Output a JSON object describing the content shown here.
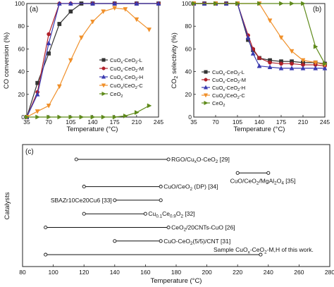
{
  "chart_data": [
    {
      "type": "line",
      "panel_label": "(a)",
      "xlabel": "Temperature (°C)",
      "ylabel": "CO conversion (%)",
      "xlim": [
        35,
        245
      ],
      "ylim": [
        0,
        100
      ],
      "xticks": [
        35,
        70,
        105,
        140,
        175,
        210,
        245
      ],
      "xtick_labels": [
        "35",
        "70",
        "105",
        "140",
        "175",
        "210",
        "245"
      ],
      "yticks": [
        0,
        20,
        40,
        60,
        80,
        100
      ],
      "ytick_labels": [
        "0",
        "20",
        "40",
        "60",
        "80",
        "100"
      ],
      "legend_position": "right",
      "series": [
        {
          "name": "CuO$_x$-CeO$_2$-L",
          "legend_parts": [
            [
              "CuO",
              ""
            ],
            [
              "x",
              "sub"
            ],
            [
              "-CeO",
              ""
            ],
            [
              "2",
              "sub"
            ],
            [
              "-L",
              ""
            ]
          ],
          "color": "#333333",
          "marker": "square",
          "x": [
            35,
            52,
            70,
            87,
            105,
            122,
            140,
            175,
            210,
            245
          ],
          "y": [
            0,
            30,
            56,
            82,
            93,
            100,
            100,
            100,
            100,
            100
          ]
        },
        {
          "name": "CuO$_x$-CeO$_2$-M",
          "legend_parts": [
            [
              "CuO",
              ""
            ],
            [
              "x",
              "sub"
            ],
            [
              "-CeO",
              ""
            ],
            [
              "2",
              "sub"
            ],
            [
              "-M",
              ""
            ]
          ],
          "color": "#b0202a",
          "marker": "circle",
          "x": [
            35,
            52,
            70,
            87,
            105,
            140,
            175,
            210,
            245
          ],
          "y": [
            0,
            22,
            73,
            100,
            100,
            100,
            100,
            100,
            100
          ]
        },
        {
          "name": "CuO$_x$-CeO$_2$-H",
          "legend_parts": [
            [
              "CuO",
              ""
            ],
            [
              "x",
              "sub"
            ],
            [
              "-CeO",
              ""
            ],
            [
              "2",
              "sub"
            ],
            [
              "-H",
              ""
            ]
          ],
          "color": "#3a3ab0",
          "marker": "triangle",
          "x": [
            35,
            52,
            70,
            87,
            105,
            140,
            175,
            210,
            245
          ],
          "y": [
            0,
            20,
            65,
            100,
            100,
            100,
            100,
            100,
            100
          ]
        },
        {
          "name": "CuO$_x$/CeO$_2$-C",
          "legend_parts": [
            [
              "CuO",
              ""
            ],
            [
              "x",
              "sub"
            ],
            [
              "/CeO",
              ""
            ],
            [
              "2",
              "sub"
            ],
            [
              "-C",
              ""
            ]
          ],
          "color": "#f0902a",
          "marker": "triangle-down",
          "x": [
            35,
            52,
            70,
            87,
            105,
            122,
            140,
            157,
            175,
            192,
            210,
            230
          ],
          "y": [
            0,
            5,
            10,
            27,
            50,
            70,
            84,
            93,
            96,
            95,
            86,
            77
          ]
        },
        {
          "name": "CeO$_2$",
          "legend_parts": [
            [
              "CeO",
              ""
            ],
            [
              "2",
              "sub"
            ]
          ],
          "color": "#5e8a1a",
          "marker": "triangle-right",
          "x": [
            35,
            52,
            70,
            87,
            105,
            122,
            140,
            157,
            175,
            192,
            210,
            230
          ],
          "y": [
            0,
            0,
            0,
            0,
            0,
            0,
            0,
            0,
            0,
            1,
            4,
            10
          ]
        }
      ]
    },
    {
      "type": "line",
      "panel_label": "(b)",
      "xlabel": "Temperature (°C)",
      "ylabel": "CO$_2$ selectivity (%)",
      "ylabel_parts": [
        [
          "CO",
          ""
        ],
        [
          "2",
          "sub"
        ],
        [
          " selectivity (%)",
          ""
        ]
      ],
      "xlim": [
        35,
        245
      ],
      "ylim": [
        0,
        100
      ],
      "xticks": [
        35,
        70,
        105,
        140,
        175,
        210,
        245
      ],
      "xtick_labels": [
        "35",
        "70",
        "105",
        "140",
        "175",
        "210",
        "245"
      ],
      "yticks": [
        0,
        20,
        40,
        60,
        80,
        100
      ],
      "ytick_labels": [
        "0",
        "20",
        "40",
        "60",
        "80",
        "100"
      ],
      "legend_position": "left",
      "series": [
        {
          "name": "CuO$_x$-CeO$_2$-L",
          "legend_parts": [
            [
              "CuO",
              ""
            ],
            [
              "x",
              "sub"
            ],
            [
              "-CeO",
              ""
            ],
            [
              "2",
              "sub"
            ],
            [
              "-L",
              ""
            ]
          ],
          "color": "#333333",
          "marker": "square",
          "x": [
            35,
            52,
            70,
            87,
            105,
            122,
            130,
            140,
            157,
            175,
            192,
            210,
            230,
            245
          ],
          "y": [
            100,
            100,
            100,
            100,
            100,
            68,
            59,
            52,
            50,
            49,
            49,
            48,
            48,
            47
          ]
        },
        {
          "name": "CuO$_x$-CeO$_2$-M",
          "legend_parts": [
            [
              "CuO",
              ""
            ],
            [
              "x",
              "sub"
            ],
            [
              "-CeO",
              ""
            ],
            [
              "2",
              "sub"
            ],
            [
              "-M",
              ""
            ]
          ],
          "color": "#b0202a",
          "marker": "circle",
          "x": [
            35,
            52,
            70,
            87,
            105,
            122,
            130,
            140,
            157,
            175,
            192,
            210,
            230,
            245
          ],
          "y": [
            100,
            100,
            100,
            100,
            100,
            72,
            60,
            52,
            48,
            47,
            47,
            46,
            46,
            45
          ]
        },
        {
          "name": "CuO$_x$-CeO$_2$-H",
          "legend_parts": [
            [
              "CuO",
              ""
            ],
            [
              "x",
              "sub"
            ],
            [
              "-CeO",
              ""
            ],
            [
              "2",
              "sub"
            ],
            [
              "-H",
              ""
            ]
          ],
          "color": "#3a3ab0",
          "marker": "triangle",
          "x": [
            35,
            52,
            70,
            87,
            105,
            122,
            130,
            140,
            157,
            175,
            192,
            210,
            230,
            245
          ],
          "y": [
            100,
            100,
            100,
            100,
            100,
            70,
            56,
            45,
            44,
            43,
            43,
            43,
            43,
            43
          ]
        },
        {
          "name": "CuO$_x$/CeO$_2$-C",
          "legend_parts": [
            [
              "CuO",
              ""
            ],
            [
              "x",
              "sub"
            ],
            [
              "/CeO",
              ""
            ],
            [
              "2",
              "sub"
            ],
            [
              "-C",
              ""
            ]
          ],
          "color": "#f0902a",
          "marker": "triangle-down",
          "x": [
            35,
            70,
            105,
            140,
            157,
            175,
            192,
            210,
            230,
            245
          ],
          "y": [
            100,
            100,
            100,
            100,
            85,
            70,
            58,
            50,
            48,
            46
          ]
        },
        {
          "name": "CeO$_2$",
          "legend_parts": [
            [
              "CeO",
              ""
            ],
            [
              "2",
              "sub"
            ]
          ],
          "color": "#5e8a1a",
          "marker": "triangle-right",
          "x": [
            35,
            70,
            105,
            140,
            175,
            192,
            210,
            230,
            245
          ],
          "y": [
            100,
            100,
            100,
            100,
            100,
            100,
            100,
            62,
            47
          ]
        }
      ]
    },
    {
      "type": "range",
      "panel_label": "(c)",
      "xlabel": "Temperature (°C)",
      "ylabel": "Catalysts",
      "xlim": [
        80,
        280
      ],
      "xticks": [
        80,
        100,
        120,
        140,
        160,
        180,
        200,
        220,
        240,
        260,
        280
      ],
      "xtick_labels": [
        "80",
        "100",
        "120",
        "140",
        "160",
        "180",
        "200",
        "220",
        "240",
        "260",
        "280"
      ],
      "items": [
        {
          "label": "RGO/Cu$_x$O-CeO$_2$ [29]",
          "parts": [
            [
              "RGO/Cu",
              ""
            ],
            [
              "x",
              "sub"
            ],
            [
              "O-CeO",
              ""
            ],
            [
              "2",
              "sub"
            ],
            [
              " [29]",
              ""
            ]
          ],
          "start": 115,
          "end": 175,
          "label_side": "right"
        },
        {
          "label": "CuO/CeO$_2$/MgAl$_2$O$_4$ [35]",
          "parts": [
            [
              "CuO/CeO",
              ""
            ],
            [
              "2",
              "sub"
            ],
            [
              "/MgAl",
              ""
            ],
            [
              "2",
              "sub"
            ],
            [
              "O",
              ""
            ],
            [
              "4",
              "sub"
            ],
            [
              " [35]",
              ""
            ]
          ],
          "start": 220,
          "end": 240,
          "label_side": "below"
        },
        {
          "label": "CuO/CeO$_2$ (DP) [34]",
          "parts": [
            [
              "CuO/CeO",
              ""
            ],
            [
              "2",
              "sub"
            ],
            [
              " (DP) [34]",
              ""
            ]
          ],
          "start": 120,
          "end": 170,
          "label_side": "right"
        },
        {
          "label": "SBAZr10Ce20Cu6 [33]",
          "parts": [
            [
              "SBAZr10Ce20Cu6 [33]",
              ""
            ]
          ],
          "start": 140,
          "end": 170,
          "label_side": "left"
        },
        {
          "label": "Cu$_{0.1}$Ce$_{0.9}$O$_2$ [32]",
          "parts": [
            [
              "Cu",
              ""
            ],
            [
              "0.1",
              "sub"
            ],
            [
              "Ce",
              ""
            ],
            [
              "0.9",
              "sub"
            ],
            [
              "O",
              ""
            ],
            [
              "2",
              "sub"
            ],
            [
              " [32]",
              ""
            ]
          ],
          "start": 120,
          "end": 160,
          "label_side": "right"
        },
        {
          "label": "CeO$_2$/20CNTs-CuO [26]",
          "parts": [
            [
              "CeO",
              ""
            ],
            [
              "2",
              "sub"
            ],
            [
              "/20CNTs-CuO [26]",
              ""
            ]
          ],
          "start": 95,
          "end": 175,
          "label_side": "right"
        },
        {
          "label": "CuO-CeO$_2$(5/5)/CNT [31]",
          "parts": [
            [
              "CuO-CeO",
              ""
            ],
            [
              "2",
              "sub"
            ],
            [
              "(5/5)/CNT [31]",
              ""
            ]
          ],
          "start": 140,
          "end": 170,
          "label_side": "right"
        },
        {
          "label": "Sample CuO$_x$-CeO$_2$-M,H of this work.",
          "parts": [
            [
              "Sample CuO",
              ""
            ],
            [
              "x",
              "sub"
            ],
            [
              "-CeO",
              ""
            ],
            [
              "2",
              "sub"
            ],
            [
              "-M,H of this work.",
              ""
            ]
          ],
          "start": 95,
          "end": 235,
          "label_side": "above"
        }
      ]
    }
  ]
}
